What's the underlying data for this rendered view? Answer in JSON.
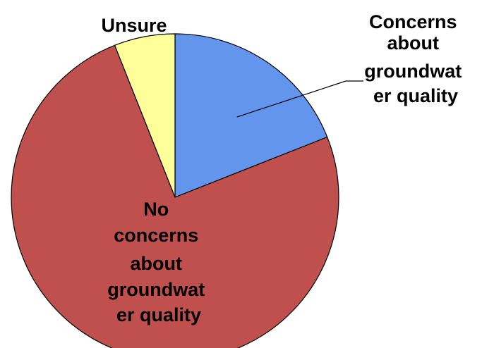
{
  "chart_data": {
    "type": "pie",
    "slices": [
      {
        "label": "Concerns about groundwater quality",
        "value": 19,
        "color": "#6495ED",
        "label_lines": [
          "Concerns",
          "about",
          "groundwat",
          "er quality"
        ]
      },
      {
        "label": "No concerns about groundwater quality",
        "value": 75,
        "color": "#C0504D",
        "label_lines": [
          "No",
          "concerns",
          "about",
          "groundwat",
          "er quality"
        ]
      },
      {
        "label": "Unsure",
        "value": 6,
        "color": "#FFFF99",
        "label_lines": [
          "Unsure"
        ]
      }
    ],
    "start": "12 o'clock",
    "direction": "clockwise",
    "legend": "none",
    "title": ""
  }
}
